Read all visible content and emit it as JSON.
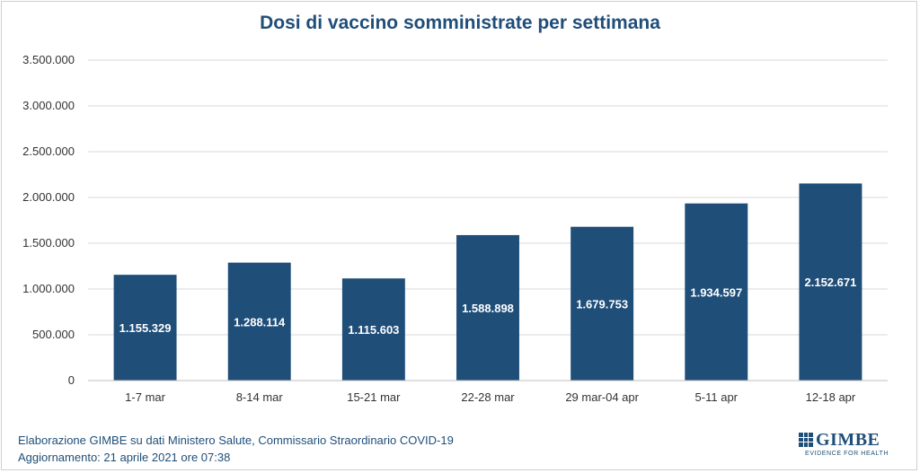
{
  "chart_data": {
    "type": "bar",
    "title": "Dosi di vaccino somministrate per settimana",
    "xlabel": "",
    "ylabel": "",
    "categories": [
      "1-7 mar",
      "8-14 mar",
      "15-21 mar",
      "22-28 mar",
      "29 mar-04 apr",
      "5-11 apr",
      "12-18 apr"
    ],
    "values": [
      1155329,
      1288114,
      1115603,
      1588898,
      1679753,
      1934597,
      2152671
    ],
    "value_labels": [
      "1.155.329",
      "1.288.114",
      "1.115.603",
      "1.588.898",
      "1.679.753",
      "1.934.597",
      "2.152.671"
    ],
    "ylim": [
      0,
      3500000
    ],
    "yticks": [
      0,
      500000,
      1000000,
      1500000,
      2000000,
      2500000,
      3000000,
      3500000
    ],
    "ytick_labels": [
      "0",
      "500.000",
      "1.000.000",
      "1.500.000",
      "2.000.000",
      "2.500.000",
      "3.000.000",
      "3.500.000"
    ],
    "grid": true,
    "legend": "none",
    "bar_color": "#1f4e79",
    "label_color": "#ffffff"
  },
  "footer": {
    "source": "Elaborazione GIMBE su dati Ministero Salute, Commissario Straordinario COVID-19",
    "updated": "Aggiornamento: 21 aprile 2021 ore 07:38"
  },
  "logo": {
    "name": "GIMBE",
    "tagline": "EVIDENCE FOR HEALTH"
  }
}
